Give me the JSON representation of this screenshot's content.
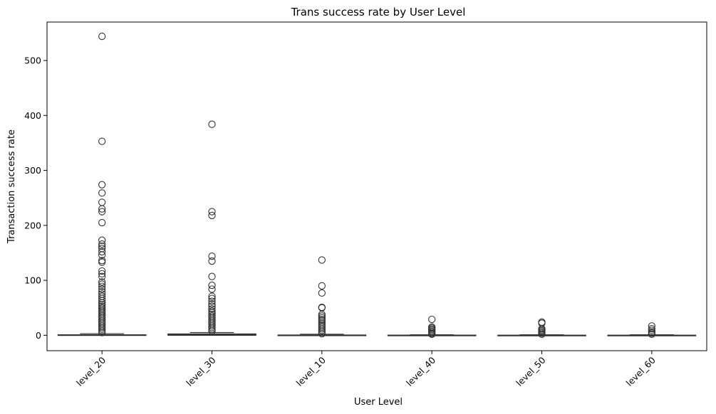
{
  "chart_data": {
    "type": "box",
    "title": "Trans success rate by User Level",
    "xlabel": "User Level",
    "ylabel": "Transaction success rate",
    "ylim": [
      -28,
      570
    ],
    "yticks": [
      0,
      100,
      200,
      300,
      400,
      500
    ],
    "grid": false,
    "legend": "none",
    "colors": {
      "box": "#333333",
      "outlier": "#333333",
      "axis": "#000000"
    },
    "categories": [
      "level_20",
      "level_30",
      "level_10",
      "level_40",
      "level_50",
      "level_60"
    ],
    "boxes": [
      {
        "name": "level_20",
        "q1": 0,
        "median": 0.3,
        "q3": 1,
        "whisker_low": 0,
        "whisker_high": 3,
        "outliers": [
          544,
          353,
          274,
          259,
          242,
          230,
          225,
          205,
          173,
          166,
          162,
          158,
          152,
          146,
          136,
          133,
          117,
          112,
          107,
          97,
          93,
          89,
          84,
          79,
          75,
          71,
          67,
          63,
          59,
          56,
          53,
          50,
          47,
          44,
          41,
          38,
          35,
          32,
          29,
          26,
          23,
          20,
          17,
          14,
          11,
          8,
          5
        ]
      },
      {
        "name": "level_30",
        "q1": 0,
        "median": 1,
        "q3": 2.5,
        "whisker_low": 0,
        "whisker_high": 5,
        "outliers": [
          384,
          225,
          218,
          144,
          135,
          107,
          91,
          84,
          71,
          67,
          62,
          57,
          53,
          48,
          44,
          41,
          38,
          35,
          32,
          29,
          26,
          23,
          20,
          17,
          14,
          11,
          8
        ]
      },
      {
        "name": "level_10",
        "q1": 0,
        "median": 0.2,
        "q3": 0.6,
        "whisker_low": 0,
        "whisker_high": 2,
        "outliers": [
          137,
          90,
          77,
          51,
          50,
          38,
          35,
          32,
          29,
          27,
          24,
          21,
          18,
          15,
          12,
          9,
          6,
          3
        ]
      },
      {
        "name": "level_40",
        "q1": 0,
        "median": 0.1,
        "q3": 0.4,
        "whisker_low": 0,
        "whisker_high": 1,
        "outliers": [
          29,
          15,
          13,
          11,
          9,
          7,
          5,
          3,
          2
        ]
      },
      {
        "name": "level_50",
        "q1": 0,
        "median": 0.1,
        "q3": 0.3,
        "whisker_low": 0,
        "whisker_high": 1,
        "outliers": [
          24,
          22,
          12,
          10,
          8,
          6,
          4,
          2
        ]
      },
      {
        "name": "level_60",
        "q1": 0,
        "median": 0.1,
        "q3": 0.3,
        "whisker_low": 0,
        "whisker_high": 1,
        "outliers": [
          17,
          12,
          9,
          6,
          4,
          2
        ]
      }
    ]
  }
}
